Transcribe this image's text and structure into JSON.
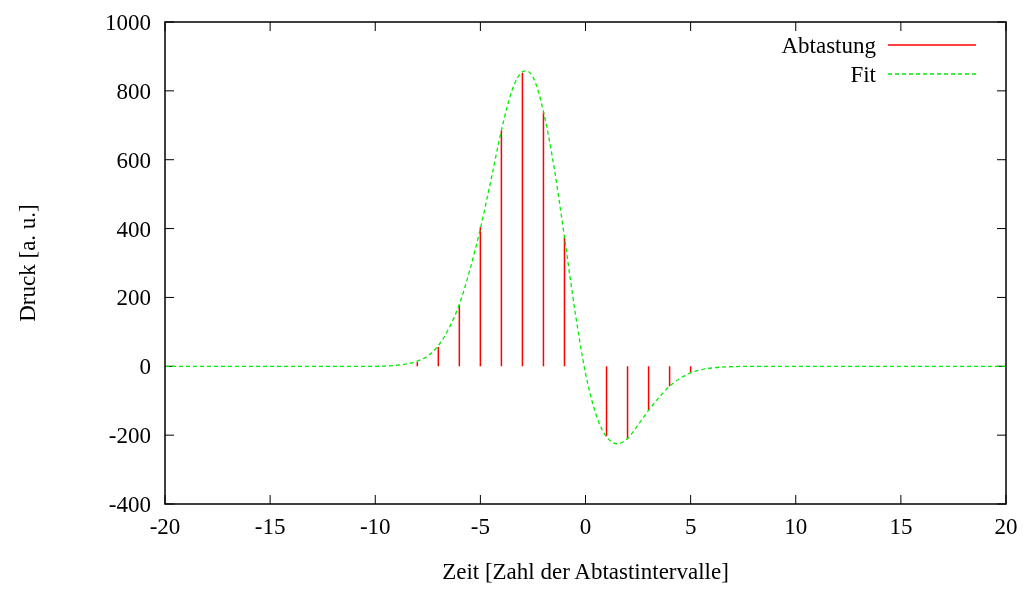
{
  "chart_data": {
    "type": "bar",
    "xlabel": "Zeit [Zahl der Abtastintervalle]",
    "ylabel": "Druck [a. u.]",
    "xlim": [
      -20,
      20
    ],
    "xticks": [
      -20,
      -15,
      -10,
      -5,
      0,
      5,
      10,
      15,
      20
    ],
    "ylim": [
      -400,
      1000
    ],
    "yticks": [
      -400,
      -200,
      0,
      200,
      400,
      600,
      800,
      1000
    ],
    "grid": false,
    "legend": "top right",
    "series": [
      {
        "name": "Abtastung",
        "color": "#ff0000",
        "x": [
          -8,
          -7,
          -6,
          -5,
          -4,
          -3,
          -2,
          -1,
          1,
          2,
          3,
          4,
          5
        ],
        "values": [
          12,
          56,
          177,
          404,
          685,
          852,
          738,
          375,
          -203,
          -212,
          -128,
          -58,
          -19
        ]
      },
      {
        "name": "Fit",
        "type": "line",
        "color": "#00ee00",
        "line_style": "dashed",
        "x": [
          -20,
          -10,
          -9,
          -8,
          -7.5,
          -7,
          -6.5,
          -6,
          -5.5,
          -5,
          -4.5,
          -4,
          -3.5,
          -3,
          -2.8,
          -2.5,
          -2,
          -1.5,
          -1,
          -0.5,
          0,
          0.5,
          1,
          1.5,
          2,
          2.5,
          3,
          3.5,
          4,
          4.5,
          5,
          5.5,
          6,
          7,
          8,
          20
        ],
        "values": [
          0,
          0,
          3,
          15,
          30,
          60,
          110,
          180,
          280,
          400,
          540,
          685,
          800,
          855,
          858,
          840,
          740,
          580,
          375,
          160,
          -20,
          -140,
          -205,
          -225,
          -210,
          -170,
          -128,
          -90,
          -58,
          -35,
          -19,
          -10,
          -5,
          -1,
          0,
          0
        ]
      }
    ]
  }
}
